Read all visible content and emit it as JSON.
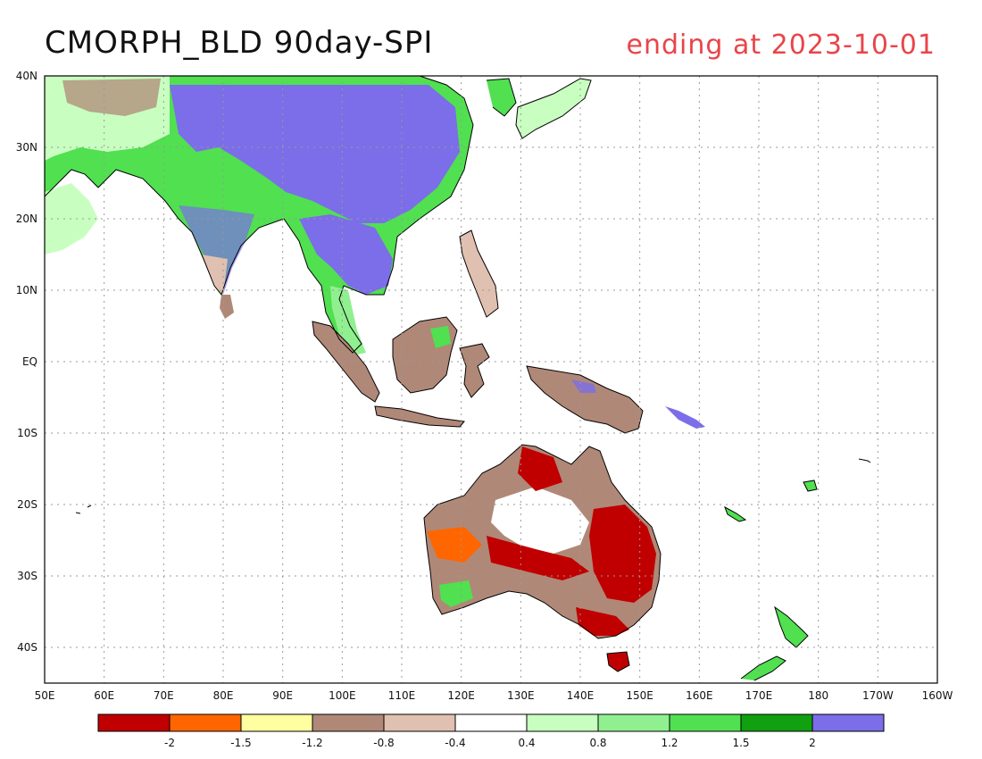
{
  "header": {
    "title": "CMORPH_BLD 90day-SPI",
    "date_text": "ending at 2023-10-01"
  },
  "map": {
    "lon_min": 50,
    "lon_max": 200,
    "lat_min": -45,
    "lat_max": 40,
    "lat_ticks": [
      {
        "value": 40,
        "label": "40N"
      },
      {
        "value": 30,
        "label": "30N"
      },
      {
        "value": 20,
        "label": "20N"
      },
      {
        "value": 10,
        "label": "10N"
      },
      {
        "value": 0,
        "label": "EQ"
      },
      {
        "value": -10,
        "label": "10S"
      },
      {
        "value": -20,
        "label": "20S"
      },
      {
        "value": -30,
        "label": "30S"
      },
      {
        "value": -40,
        "label": "40S"
      }
    ],
    "lon_ticks": [
      {
        "value": 50,
        "label": "50E"
      },
      {
        "value": 60,
        "label": "60E"
      },
      {
        "value": 70,
        "label": "70E"
      },
      {
        "value": 80,
        "label": "80E"
      },
      {
        "value": 90,
        "label": "90E"
      },
      {
        "value": 100,
        "label": "100E"
      },
      {
        "value": 110,
        "label": "110E"
      },
      {
        "value": 120,
        "label": "120E"
      },
      {
        "value": 130,
        "label": "130E"
      },
      {
        "value": 140,
        "label": "140E"
      },
      {
        "value": 150,
        "label": "150E"
      },
      {
        "value": 160,
        "label": "160E"
      },
      {
        "value": 170,
        "label": "170E"
      },
      {
        "value": 180,
        "label": "180"
      },
      {
        "value": 190,
        "label": "170W"
      },
      {
        "value": 200,
        "label": "160W"
      }
    ]
  },
  "colorbar": {
    "colors": [
      "#c00000",
      "#ff6600",
      "#ffffa0",
      "#b08878",
      "#e0c0b0",
      "#ffffff",
      "#c8ffc0",
      "#90f090",
      "#50e050",
      "#10a010",
      "#7b6ee8"
    ],
    "labels": [
      "-2",
      "-1.5",
      "-1.2",
      "-0.8",
      "-0.4",
      "0.4",
      "0.8",
      "1.2",
      "1.5",
      "2"
    ]
  }
}
